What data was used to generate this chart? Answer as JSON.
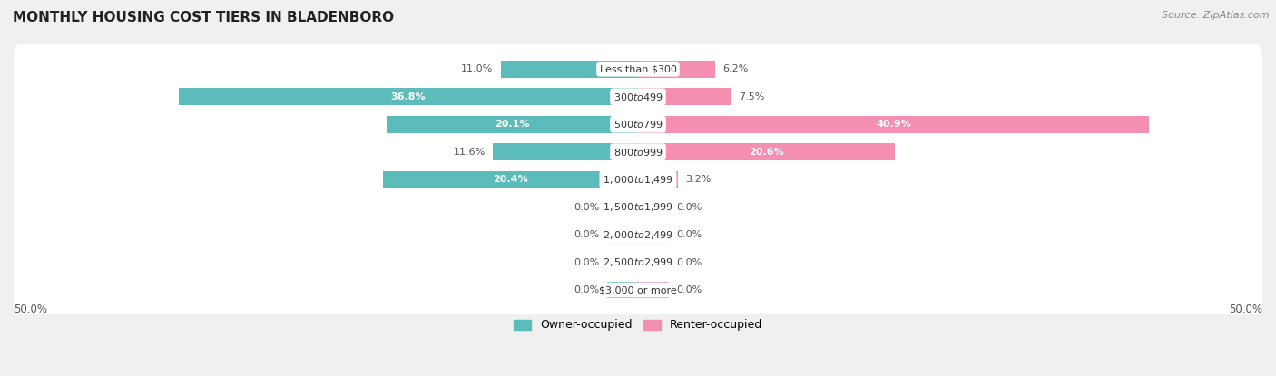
{
  "title": "MONTHLY HOUSING COST TIERS IN BLADENBORO",
  "source": "Source: ZipAtlas.com",
  "categories": [
    "Less than $300",
    "$300 to $499",
    "$500 to $799",
    "$800 to $999",
    "$1,000 to $1,499",
    "$1,500 to $1,999",
    "$2,000 to $2,499",
    "$2,500 to $2,999",
    "$3,000 or more"
  ],
  "owner_values": [
    11.0,
    36.8,
    20.1,
    11.6,
    20.4,
    0.0,
    0.0,
    0.0,
    0.0
  ],
  "renter_values": [
    6.2,
    7.5,
    40.9,
    20.6,
    3.2,
    0.0,
    0.0,
    0.0,
    0.0
  ],
  "owner_color": "#5bbcbb",
  "renter_color": "#f48fb1",
  "background_color": "#f0f0f0",
  "bar_background_color": "#ffffff",
  "max_value": 50.0,
  "axis_label_left": "50.0%",
  "axis_label_right": "50.0%",
  "legend_owner": "Owner-occupied",
  "legend_renter": "Renter-occupied",
  "stub_size": 2.5,
  "white_label_threshold": 20.0
}
